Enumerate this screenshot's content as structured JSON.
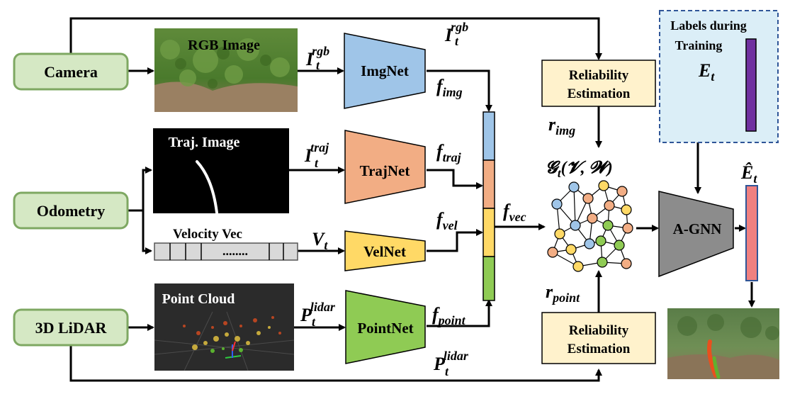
{
  "sensors": {
    "camera": "Camera",
    "odometry": "Odometry",
    "lidar": "3D LiDAR"
  },
  "images": {
    "rgb": "RGB Image",
    "traj": "Traj. Image",
    "velocity": "Velocity Vec",
    "velocity_dots": "........",
    "point_cloud": "Point Cloud"
  },
  "networks": {
    "img": "ImgNet",
    "traj": "TrajNet",
    "vel": "VelNet",
    "point": "PointNet",
    "agnn": "A-GNN"
  },
  "reliability": {
    "top_line1": "Reliability",
    "top_line2": "Estimation",
    "bottom_line1": "Reliability",
    "bottom_line2": "Estimation"
  },
  "labels_box": {
    "line1": "Labels during",
    "line2": "Training"
  },
  "symbols": {
    "I": "I",
    "t": "t",
    "rgb": "rgb",
    "traj": "traj",
    "V": "V",
    "P": "P",
    "lidar": "lidar",
    "f": "f",
    "img": "img",
    "traj_sub": "traj",
    "vel": "vel",
    "point": "point",
    "vec": "vec",
    "r": "r",
    "r_img": "img",
    "r_point": "point",
    "E": "E",
    "E_hat": "Ê",
    "graph": "𝓖",
    "graph_args": "(𝓥, 𝓦)"
  },
  "colors": {
    "sensor_fill": "#d5e8c4",
    "sensor_stroke": "#7ea862",
    "imgnet": "#9fc5e8",
    "trajnet": "#f2ad84",
    "velnet": "#ffd966",
    "pointnet": "#8fcb54",
    "agnn": "#8c8c8c",
    "reliability_fill": "#fff2cc",
    "labels_fill": "#dbeef7",
    "labels_stroke": "#2f5597",
    "label_bar": "#7030a0",
    "output_bar": "#f08080",
    "node_blue": "#9fc5e8",
    "node_orange": "#f2ad84",
    "node_yellow": "#ffd966",
    "node_green": "#8fcb54"
  }
}
